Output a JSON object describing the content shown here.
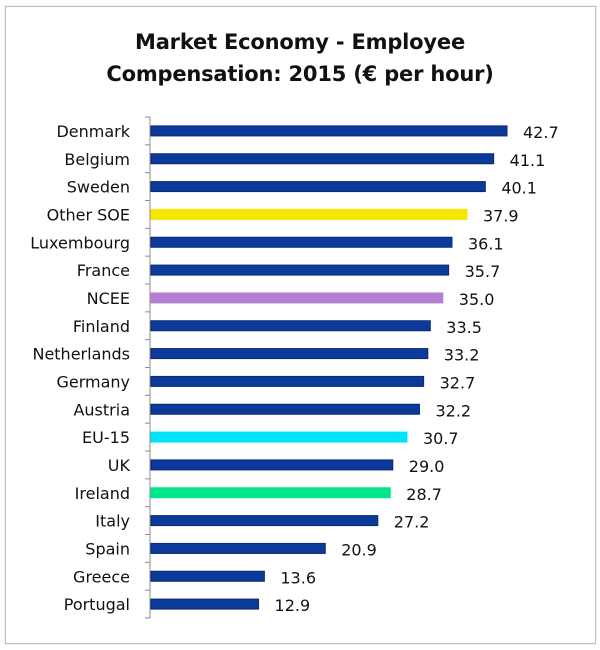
{
  "chart_data": {
    "type": "bar",
    "orientation": "horizontal",
    "title": "Market Economy - Employee Compensation:  2015 (€ per hour)",
    "title_lines": [
      "Market Economy - Employee",
      "Compensation:  2015 (€ per hour)"
    ],
    "xlabel": "",
    "ylabel": "",
    "xlim": [
      0,
      45
    ],
    "grid": false,
    "legend": "none",
    "value_format": "0.0",
    "categories": [
      "Denmark",
      "Belgium",
      "Sweden",
      "Other SOE",
      "Luxembourg",
      "France",
      "NCEE",
      "Finland",
      "Netherlands",
      "Germany",
      "Austria",
      "EU-15",
      "UK",
      "Ireland",
      "Italy",
      "Spain",
      "Greece",
      "Portugal"
    ],
    "values": [
      42.7,
      41.1,
      40.1,
      37.9,
      36.1,
      35.7,
      35.0,
      33.5,
      33.2,
      32.7,
      32.2,
      30.7,
      29.0,
      28.7,
      27.2,
      20.9,
      13.6,
      12.9
    ],
    "value_labels": [
      "42.7",
      "41.1",
      "40.1",
      "37.9",
      "36.1",
      "35.7",
      "35.0",
      "33.5",
      "33.2",
      "32.7",
      "32.2",
      "30.7",
      "29.0",
      "28.7",
      "27.2",
      "20.9",
      "13.6",
      "12.9"
    ],
    "colors": {
      "default": "#0b3a9a",
      "Other SOE": "#f5e800",
      "NCEE": "#b57fd6",
      "EU-15": "#00e4f8",
      "Ireland": "#00e68a"
    }
  }
}
